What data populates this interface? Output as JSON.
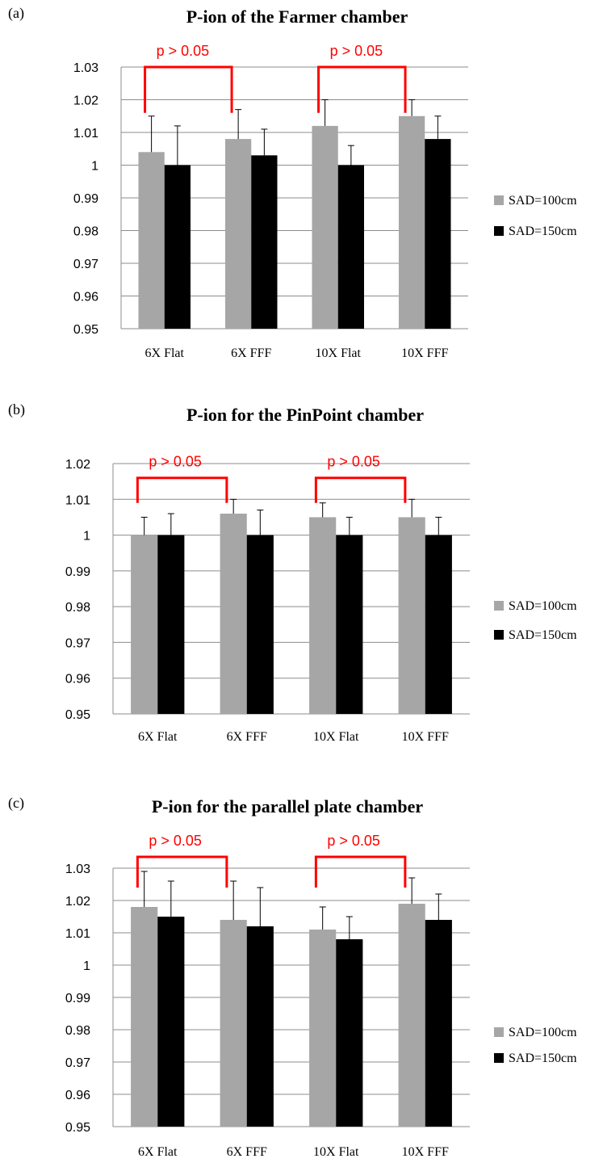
{
  "chart_data": [
    {
      "type": "bar",
      "panel_label": "(a)",
      "title": "P-ion of the Farmer chamber",
      "categories": [
        "6X Flat",
        "6X FFF",
        "10X Flat",
        "10X FFF"
      ],
      "series": [
        {
          "name": "SAD=100cm",
          "color": "#a6a6a6",
          "values": [
            1.004,
            1.008,
            1.012,
            1.015
          ],
          "error": [
            0.011,
            0.009,
            0.008,
            0.005
          ]
        },
        {
          "name": "SAD=150cm",
          "color": "#000000",
          "values": [
            1.0,
            1.003,
            1.0,
            1.008
          ],
          "error": [
            0.012,
            0.008,
            0.006,
            0.007
          ]
        }
      ],
      "ylim": [
        0.95,
        1.03
      ],
      "yticks": [
        "0.95",
        "0.96",
        "0.97",
        "0.98",
        "0.99",
        "1",
        "1.01",
        "1.02",
        "1.03"
      ],
      "annotations": [
        {
          "text": "p > 0.05",
          "from": 0,
          "to": 1,
          "y_level": 1.03,
          "y_low": 1.016
        },
        {
          "text": "p > 0.05",
          "from": 2,
          "to": 3,
          "y_level": 1.03,
          "y_low": 1.016
        }
      ],
      "legend": "right",
      "grid": true
    },
    {
      "type": "bar",
      "panel_label": "(b)",
      "title": "P-ion for the PinPoint chamber",
      "categories": [
        "6X Flat",
        "6X FFF",
        "10X Flat",
        "10X FFF"
      ],
      "series": [
        {
          "name": "SAD=100cm",
          "color": "#a6a6a6",
          "values": [
            1.0,
            1.006,
            1.005,
            1.005
          ],
          "error": [
            0.005,
            0.004,
            0.004,
            0.005
          ]
        },
        {
          "name": "SAD=150cm",
          "color": "#000000",
          "values": [
            1.0,
            1.0,
            1.0,
            1.0
          ],
          "error": [
            0.006,
            0.007,
            0.005,
            0.005
          ]
        }
      ],
      "ylim": [
        0.95,
        1.02
      ],
      "yticks": [
        "0.95",
        "0.96",
        "0.97",
        "0.98",
        "0.99",
        "1",
        "1.01",
        "1.02"
      ],
      "annotations": [
        {
          "text": "p > 0.05",
          "from": 0,
          "to": 1,
          "y_level": 1.016,
          "y_low": 1.009
        },
        {
          "text": "p > 0.05",
          "from": 2,
          "to": 3,
          "y_level": 1.016,
          "y_low": 1.009
        }
      ],
      "legend": "right",
      "grid": true
    },
    {
      "type": "bar",
      "panel_label": "(c)",
      "title": "P-ion for the parallel plate chamber",
      "categories": [
        "6X Flat",
        "6X FFF",
        "10X Flat",
        "10X FFF"
      ],
      "series": [
        {
          "name": "SAD=100cm",
          "color": "#a6a6a6",
          "values": [
            1.018,
            1.014,
            1.011,
            1.019
          ],
          "error": [
            0.011,
            0.012,
            0.007,
            0.008
          ]
        },
        {
          "name": "SAD=150cm",
          "color": "#000000",
          "values": [
            1.015,
            1.012,
            1.008,
            1.014
          ],
          "error": [
            0.011,
            0.012,
            0.007,
            0.008
          ]
        }
      ],
      "ylim": [
        0.95,
        1.03
      ],
      "yticks": [
        "0.95",
        "0.96",
        "0.97",
        "0.98",
        "0.99",
        "1",
        "1.01",
        "1.02",
        "1.03"
      ],
      "annotations": [
        {
          "text": "p > 0.05",
          "from": 0,
          "to": 1,
          "y_level": 1.0335,
          "y_low": 1.024
        },
        {
          "text": "p > 0.05",
          "from": 2,
          "to": 3,
          "y_level": 1.0335,
          "y_low": 1.024
        }
      ],
      "legend": "right",
      "grid": true
    }
  ]
}
